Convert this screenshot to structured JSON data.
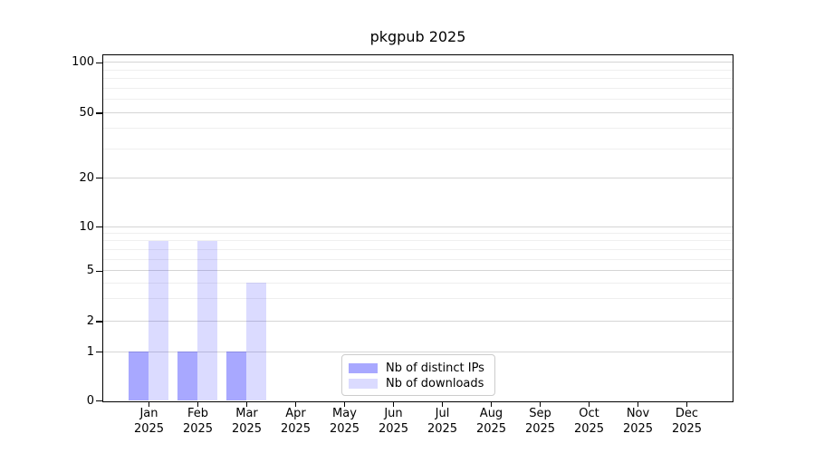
{
  "chart_data": {
    "type": "bar",
    "title": "pkgpub 2025",
    "categories": [
      "Jan",
      "Feb",
      "Mar",
      "Apr",
      "May",
      "Jun",
      "Jul",
      "Aug",
      "Sep",
      "Oct",
      "Nov",
      "Dec"
    ],
    "year_label": "2025",
    "series": [
      {
        "name": "Nb of distinct IPs",
        "values": [
          1,
          1,
          1,
          0,
          0,
          0,
          0,
          0,
          0,
          0,
          0,
          0
        ],
        "color": "rgba(0,0,255,0.34)",
        "solid_hex": "#aaaaf7"
      },
      {
        "name": "Nb of downloads",
        "values": [
          8,
          8,
          4,
          0,
          0,
          0,
          0,
          0,
          0,
          0,
          0,
          0
        ],
        "color": "rgba(0,0,255,0.14)",
        "solid_hex": "#dbdbf9"
      }
    ],
    "y_axis": {
      "scale": "symlog",
      "major_ticks": [
        0,
        1,
        2,
        5,
        10,
        20,
        50,
        100
      ],
      "minor_gridlines": [
        3,
        4,
        6,
        7,
        8,
        9,
        30,
        40,
        60,
        70,
        80,
        90
      ],
      "ylim": [
        0,
        110
      ]
    },
    "x_axis": {
      "label_lines": 2
    },
    "legend": {
      "position": "lower center"
    },
    "grid": true
  }
}
